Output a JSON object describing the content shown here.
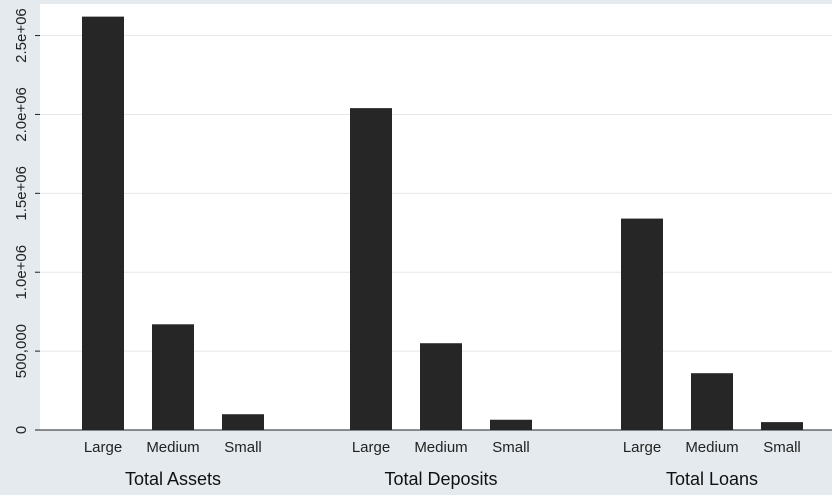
{
  "chart_data": {
    "type": "bar",
    "title": "",
    "xlabel": "",
    "ylabel": "",
    "ylim": [
      0,
      2700000
    ],
    "grid": true,
    "legend": "none",
    "y_ticks": [
      {
        "value": 0,
        "label": "0"
      },
      {
        "value": 500000,
        "label": "500,000"
      },
      {
        "value": 1000000,
        "label": "1.0e+06"
      },
      {
        "value": 1500000,
        "label": "1.5e+06"
      },
      {
        "value": 2000000,
        "label": "2.0e+06"
      },
      {
        "value": 2500000,
        "label": "2.5e+06"
      }
    ],
    "groups": [
      {
        "label": "Total Assets",
        "categories": [
          "Large",
          "Medium",
          "Small"
        ],
        "values": [
          2620000,
          670000,
          100000
        ]
      },
      {
        "label": "Total Deposits",
        "categories": [
          "Large",
          "Medium",
          "Small"
        ],
        "values": [
          2040000,
          550000,
          65000
        ]
      },
      {
        "label": "Total Loans",
        "categories": [
          "Large",
          "Medium",
          "Small"
        ],
        "values": [
          1340000,
          360000,
          50000
        ]
      }
    ],
    "colors": {
      "bar": "#262626",
      "plot_background": "#ffffff",
      "outer_background": "#e4eaee",
      "grid": "#e2e8ec"
    }
  }
}
